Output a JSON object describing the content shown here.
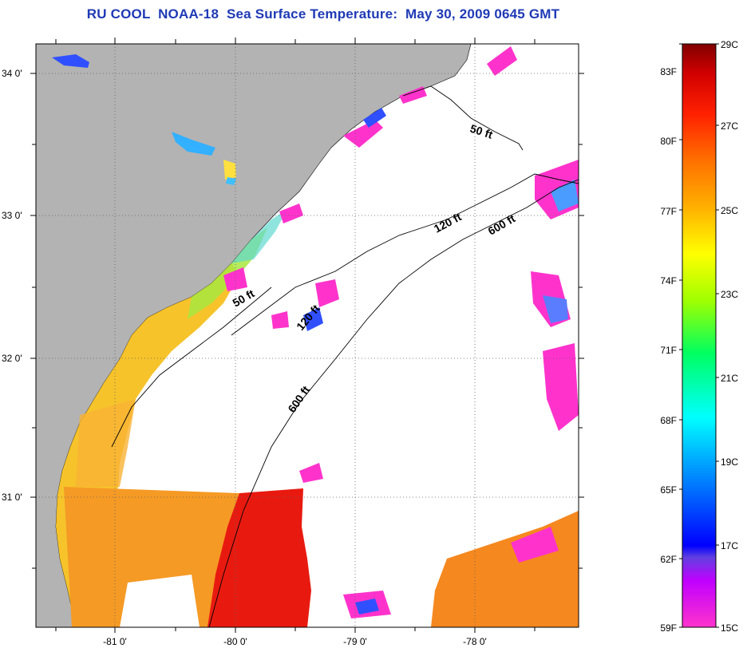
{
  "title": "RU COOL  NOAA-18  Sea Surface Temperature:  May 30, 2009 0645 GMT",
  "map": {
    "lat_ticks": [
      {
        "value": 34,
        "label": "34 0'"
      },
      {
        "value": 33,
        "label": "33 0'"
      },
      {
        "value": 32,
        "label": "32 0'"
      },
      {
        "value": 31,
        "label": "31 0'"
      }
    ],
    "lon_ticks": [
      {
        "value": -81,
        "label": "-81 0'"
      },
      {
        "value": -80,
        "label": "-80 0'"
      },
      {
        "value": -79,
        "label": "-79 0'"
      },
      {
        "value": -78,
        "label": "-78 0'"
      }
    ],
    "lat_range": [
      30.2,
      34.2
    ],
    "lon_range": [
      -81.6,
      -77.1
    ],
    "land_color": "#b3b3b3",
    "contours": [
      {
        "label": "50 ft"
      },
      {
        "label": "50 ft"
      },
      {
        "label": "120 ft"
      },
      {
        "label": "120 ft"
      },
      {
        "label": "600 ft"
      },
      {
        "label": "600 ft"
      }
    ]
  },
  "colorbar": {
    "fahrenheit_labels": [
      "83F",
      "80F",
      "77F",
      "74F",
      "71F",
      "68F",
      "65F",
      "62F",
      "59F"
    ],
    "celsius_labels": [
      "29C",
      "27C",
      "25C",
      "23C",
      "21C",
      "19C",
      "17C",
      "15C"
    ],
    "colors": [
      "#ff00ff",
      "#b000ff",
      "#0000ff",
      "#00ffff",
      "#00ff00",
      "#ffff00",
      "#ff8000",
      "#ff0000",
      "#800000"
    ]
  }
}
